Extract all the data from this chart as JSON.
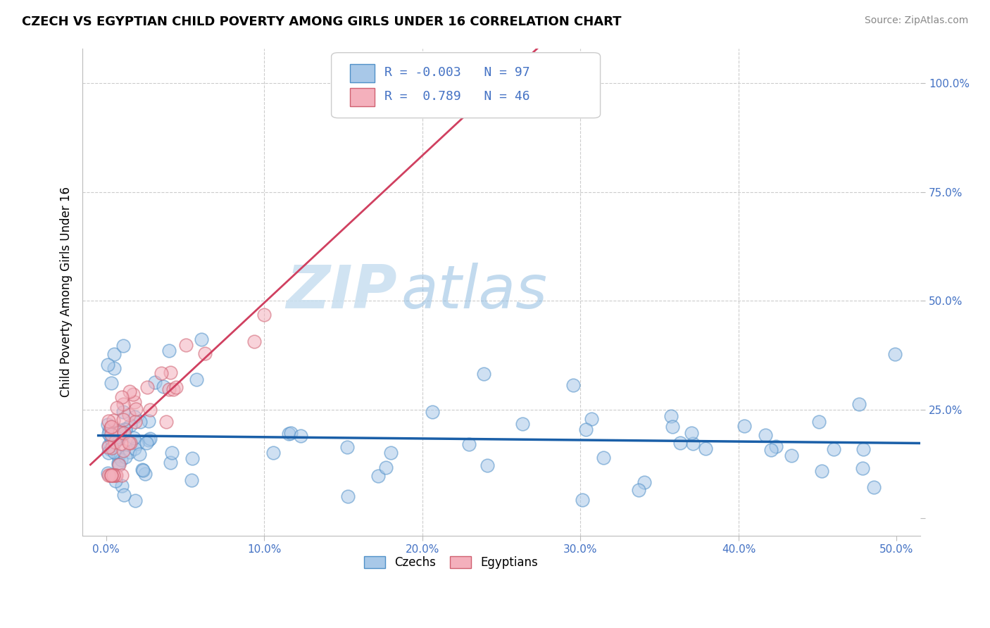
{
  "title": "CZECH VS EGYPTIAN CHILD POVERTY AMONG GIRLS UNDER 16 CORRELATION CHART",
  "source_text": "Source: ZipAtlas.com",
  "ylabel": "Child Poverty Among Girls Under 16",
  "watermark_bold": "ZIP",
  "watermark_light": "atlas",
  "czech_color": "#a8c8e8",
  "egyptian_color": "#f4b0bc",
  "czech_edge_color": "#5090c8",
  "egyptian_edge_color": "#d06070",
  "regression_czech_color": "#1a5fa8",
  "regression_egyptian_color": "#d04060",
  "legend_R_czech": "-0.003",
  "legend_N_czech": "97",
  "legend_R_egyptian": "0.789",
  "legend_N_egyptian": "46",
  "accent_color": "#4472c4",
  "grid_color": "#cccccc",
  "title_color": "#000000",
  "source_color": "#888888"
}
